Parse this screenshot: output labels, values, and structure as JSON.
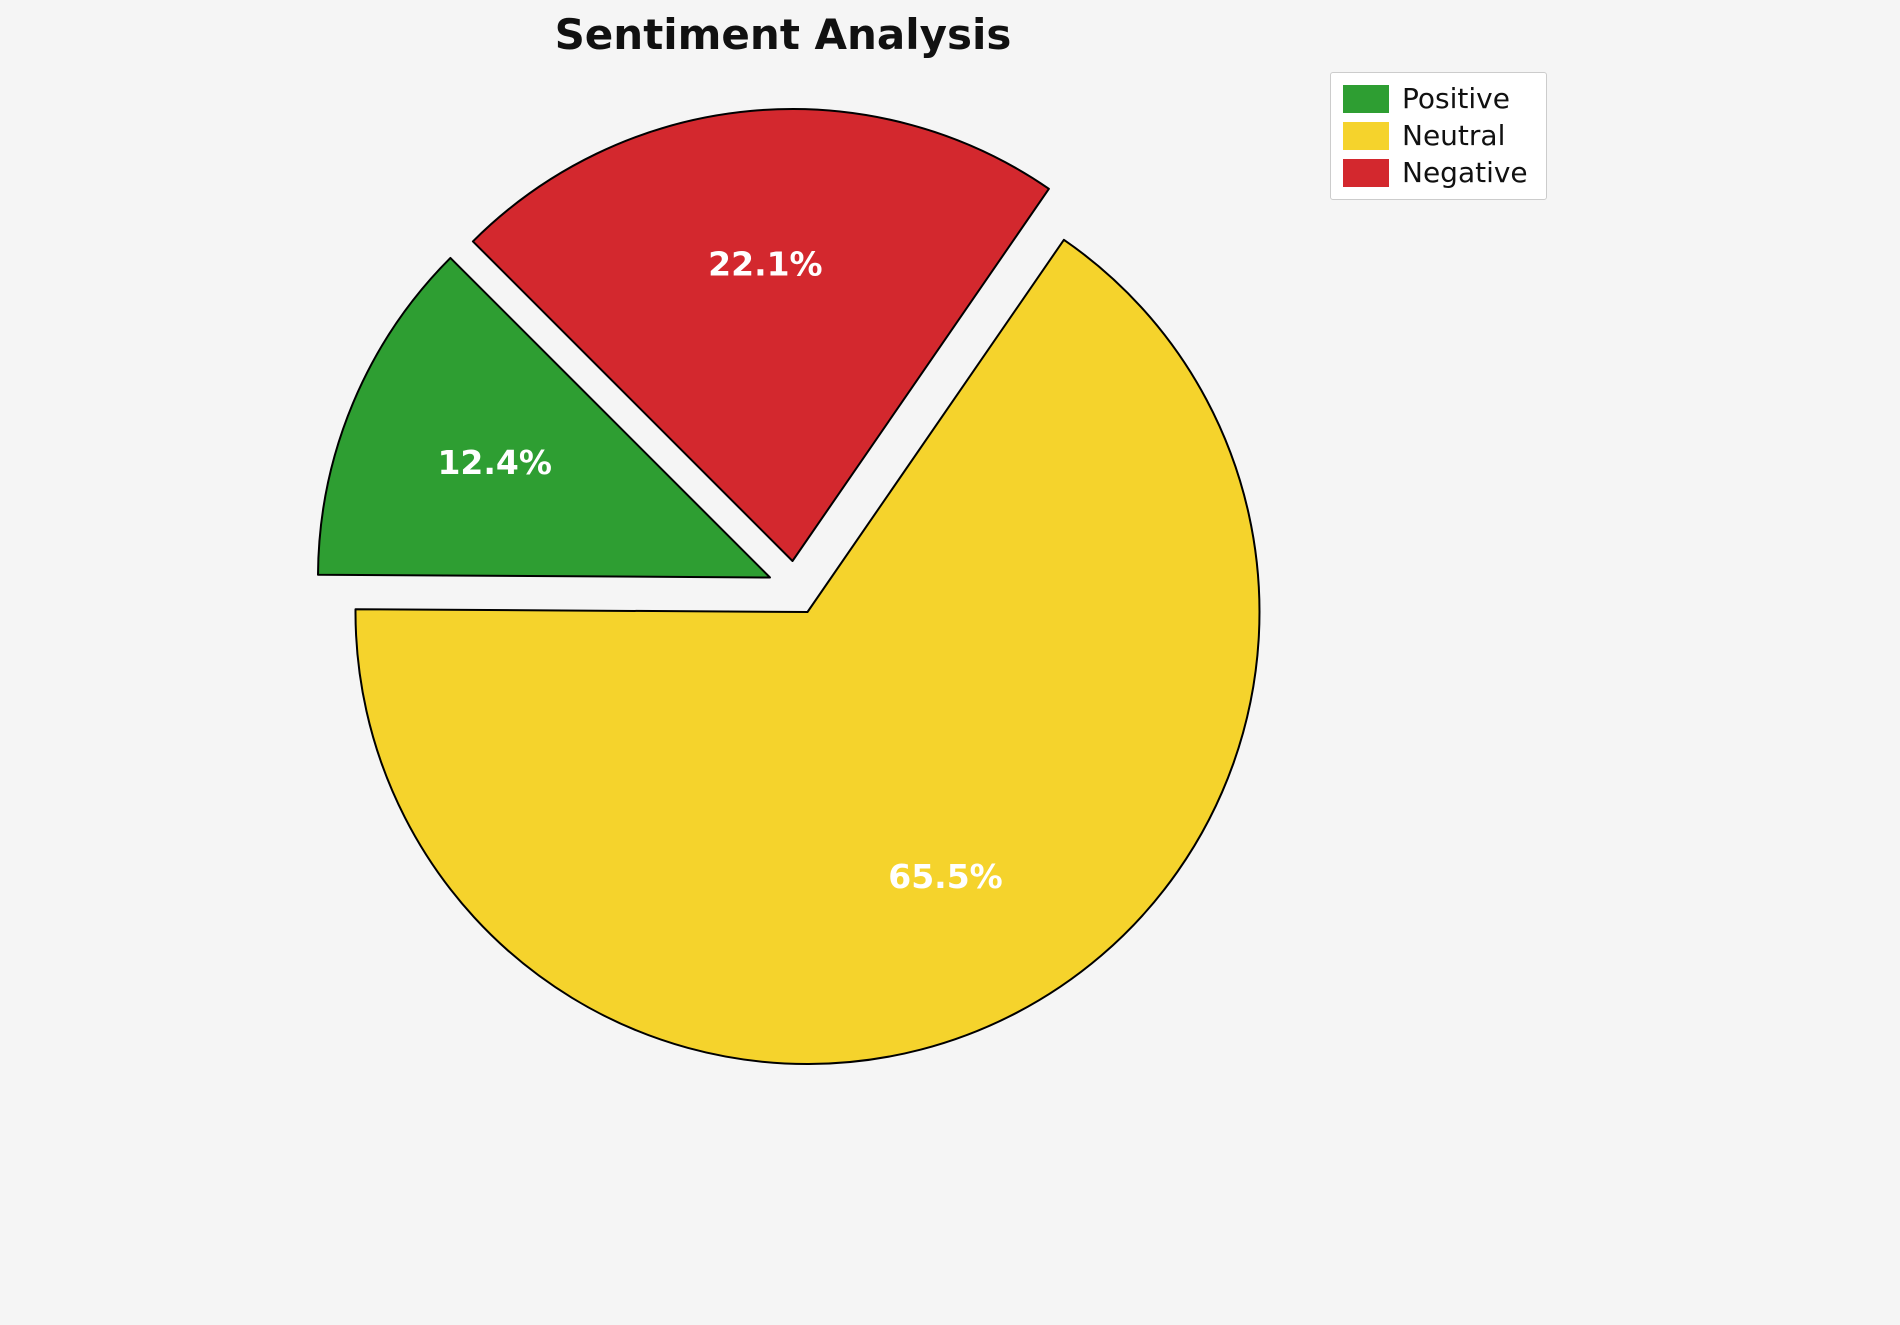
{
  "page": {
    "background_color": "#f5f5f5"
  },
  "chart_data": {
    "type": "pie",
    "title": "Sentiment Analysis",
    "labels": [
      "Positive",
      "Neutral",
      "Negative"
    ],
    "values": [
      12.4,
      65.5,
      22.1
    ],
    "display_labels": [
      "12.4%",
      "65.5%",
      "22.1%"
    ],
    "colors": [
      "#2e9e32",
      "#f5d32c",
      "#d3282e"
    ],
    "slice_edge_color": "#000000",
    "label_text_color": "#ffffff",
    "start_angle_deg": 135,
    "explode": [
      0.06,
      0.06,
      0.06
    ],
    "legend": {
      "position": "upper right",
      "entries": [
        "Positive",
        "Neutral",
        "Negative"
      ]
    }
  }
}
